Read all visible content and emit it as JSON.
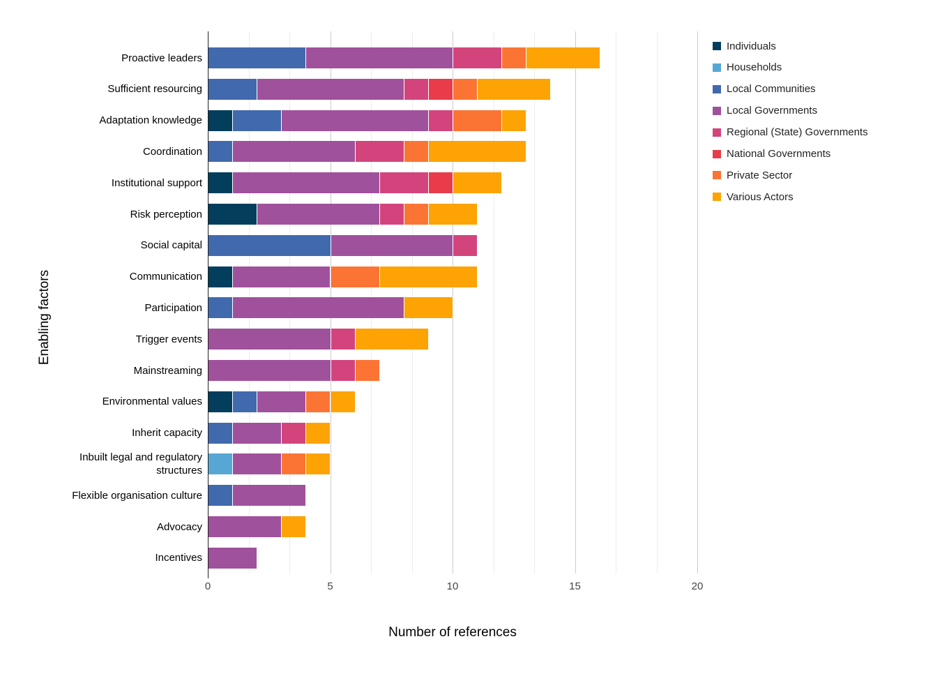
{
  "page": {
    "background": "#ffffff"
  },
  "axes": {
    "x_title": "Number of references",
    "y_title": "Enabling factors",
    "x_tick_labels": [
      "0",
      "5",
      "10",
      "15",
      "20"
    ]
  },
  "chart_data": {
    "type": "bar",
    "orientation": "horizontal",
    "stacked": true,
    "xlabel": "Number of references",
    "ylabel": "Enabling factors",
    "xlim": [
      0,
      20
    ],
    "x_ticks": [
      0,
      5,
      10,
      15,
      20
    ],
    "minor_gridline_step": 1.6667,
    "grid": true,
    "legend_position": "right",
    "categories": [
      "Proactive leaders",
      "Sufficient resourcing",
      "Adaptation knowledge",
      "Coordination",
      "Institutional support",
      "Risk perception",
      "Social capital",
      "Communication",
      "Participation",
      "Trigger events",
      "Mainstreaming",
      "Environmental values",
      "Inherit capacity",
      "Inbuilt legal and regulatory structures",
      "Flexible organisation culture",
      "Advocacy",
      "Incentives"
    ],
    "series": [
      {
        "name": "Individuals",
        "color": "#033e5c",
        "values": [
          0,
          0,
          1,
          0,
          1,
          2,
          0,
          1,
          0,
          0,
          0,
          1,
          0,
          0,
          0,
          0,
          0
        ]
      },
      {
        "name": "Households",
        "color": "#57a7d5",
        "values": [
          0,
          0,
          0,
          0,
          0,
          0,
          0,
          0,
          0,
          0,
          0,
          0,
          0,
          1,
          0,
          0,
          0
        ]
      },
      {
        "name": "Local Communities",
        "color": "#4169ad",
        "values": [
          4,
          2,
          2,
          1,
          0,
          0,
          5,
          0,
          1,
          0,
          0,
          1,
          1,
          0,
          1,
          0,
          0
        ]
      },
      {
        "name": "Local Governments",
        "color": "#a0519c",
        "values": [
          6,
          6,
          6,
          5,
          6,
          5,
          5,
          4,
          7,
          5,
          5,
          2,
          2,
          2,
          3,
          3,
          2
        ]
      },
      {
        "name": "Regional (State) Governments",
        "color": "#d3447c",
        "values": [
          2,
          1,
          1,
          2,
          2,
          1,
          1,
          0,
          0,
          1,
          1,
          0,
          1,
          0,
          0,
          0,
          0
        ]
      },
      {
        "name": "National Governments",
        "color": "#e83c4b",
        "values": [
          0,
          1,
          0,
          0,
          1,
          0,
          0,
          0,
          0,
          0,
          0,
          0,
          0,
          0,
          0,
          0,
          0
        ]
      },
      {
        "name": "Private Sector",
        "color": "#fb7434",
        "values": [
          1,
          1,
          2,
          1,
          0,
          1,
          0,
          2,
          0,
          0,
          1,
          1,
          0,
          1,
          0,
          0,
          0
        ]
      },
      {
        "name": "Various Actors",
        "color": "#fda303",
        "values": [
          3,
          3,
          1,
          4,
          2,
          2,
          0,
          4,
          2,
          3,
          0,
          1,
          1,
          1,
          0,
          1,
          0
        ]
      }
    ],
    "totals": [
      16,
      14,
      13,
      13,
      12,
      11,
      11,
      11,
      10,
      9,
      7,
      6,
      5,
      5,
      4,
      4,
      2
    ]
  }
}
